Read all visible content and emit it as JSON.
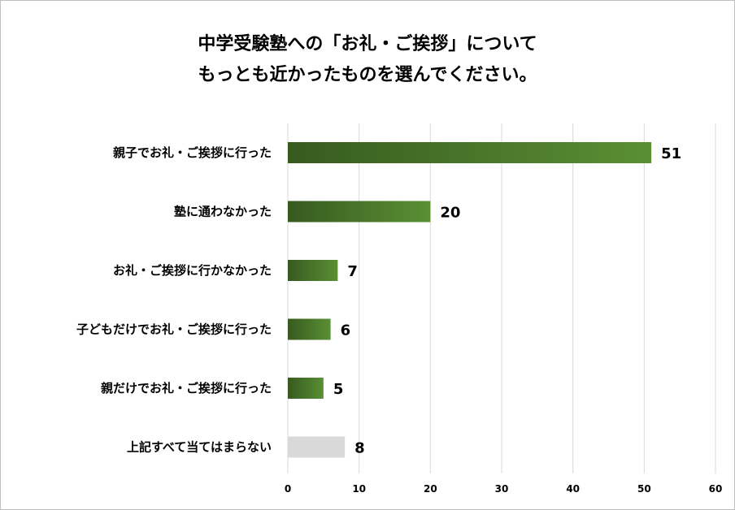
{
  "chart_data": {
    "type": "bar",
    "orientation": "horizontal",
    "title_lines": [
      "中学受験塾への「お礼・ご挨拶」について",
      "もっとも近かったものを選んでください。"
    ],
    "categories": [
      "親子でお礼・ご挨拶に行った",
      "塾に通わなかった",
      "お礼・ご挨拶に行かなかった",
      "子どもだけでお礼・ご挨拶に行った",
      "親だけでお礼・ご挨拶に行った",
      "上記すべて当てはまらない"
    ],
    "values": [
      51,
      20,
      7,
      6,
      5,
      8
    ],
    "bar_colors": [
      "#4f7f2d",
      "#4f7f2d",
      "#4f7f2d",
      "#4f7f2d",
      "#4f7f2d",
      "#d9d9d9"
    ],
    "xlim": [
      0,
      60
    ],
    "xticks": [
      0,
      10,
      20,
      30,
      40,
      50,
      60
    ],
    "grid": true,
    "legend": "none"
  }
}
